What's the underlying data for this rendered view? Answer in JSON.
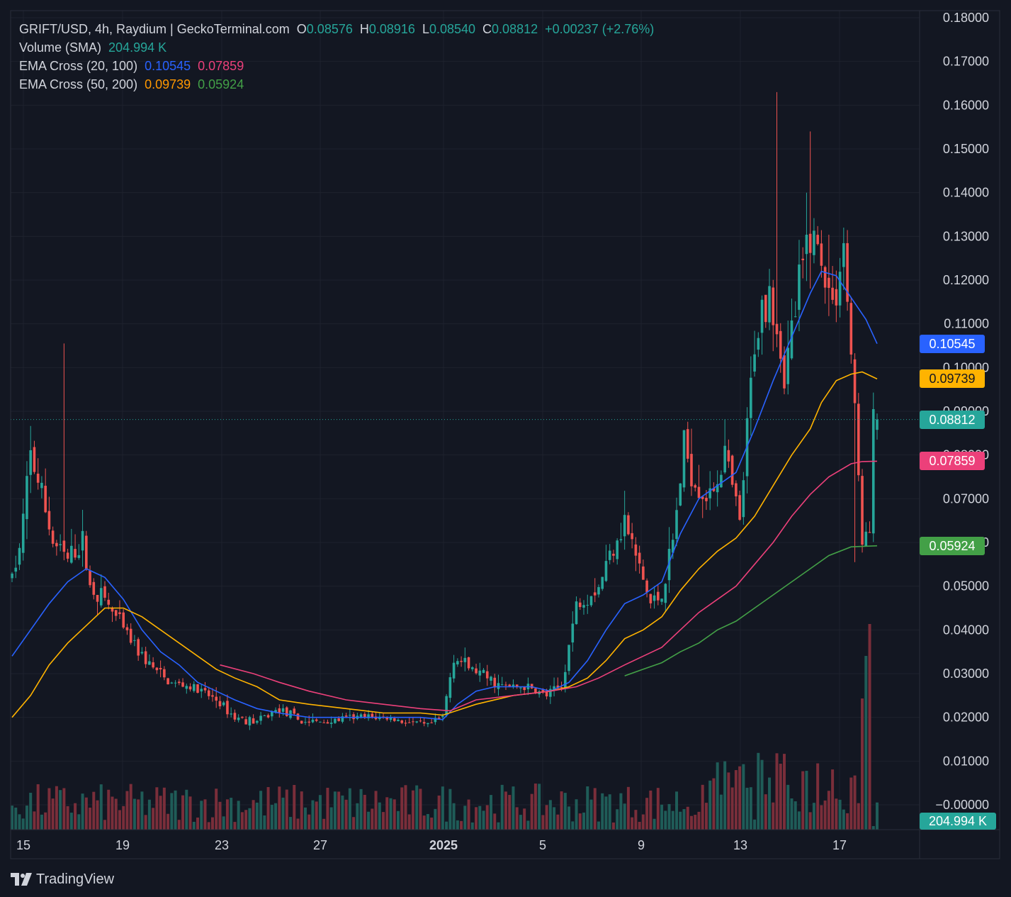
{
  "header": {
    "symbol_line": "GRIFT/USD, 4h, Raydium | GeckoTerminal.com",
    "ohlc": {
      "o_key": "O",
      "o": "0.08576",
      "h_key": "H",
      "h": "0.08916",
      "l_key": "L",
      "l": "0.08540",
      "c_key": "C",
      "c": "0.08812",
      "change": "+0.00237 (+2.76%)"
    },
    "volume_label": "Volume (SMA)",
    "volume_value": "204.994 K",
    "ema1_label": "EMA Cross (20, 100)",
    "ema1_fast": "0.10545",
    "ema1_slow": "0.07859",
    "ema2_label": "EMA Cross (50, 200)",
    "ema2_fast": "0.09739",
    "ema2_slow": "0.05924"
  },
  "badges": {
    "ema20": {
      "text": "0.10545",
      "value": 0.10545,
      "color": "#2962ff"
    },
    "ema50": {
      "text": "0.09739",
      "value": 0.09739,
      "color": "#ffb300"
    },
    "last": {
      "text": "0.08812",
      "value": 0.08812,
      "color": "#26a69a"
    },
    "ema100": {
      "text": "0.07859",
      "value": 0.07859,
      "color": "#ec407a"
    },
    "ema200": {
      "text": "0.05924",
      "value": 0.05924,
      "color": "#43a047"
    },
    "volume": {
      "text": "204.994 K",
      "color": "#26a69a"
    }
  },
  "brand": {
    "logo_text": "TradingView"
  },
  "colors": {
    "background": "#131722",
    "grid": "#1e222d",
    "up": "#26a69a",
    "down": "#ef5350",
    "volume_up": "#1f5c58",
    "volume_down": "#7a2e3a",
    "text": "#d1d4dc"
  },
  "chart_data": {
    "type": "candlestick",
    "symbol": "GRIFT/USD",
    "interval": "4h",
    "x_axis_ticks": [
      "15",
      "19",
      "23",
      "27",
      "2025",
      "5",
      "9",
      "13",
      "17"
    ],
    "y_axis_ticks": [
      "0.18000",
      "0.17000",
      "0.16000",
      "0.15000",
      "0.14000",
      "0.13000",
      "0.12000",
      "0.11000",
      "0.10000",
      "0.09000",
      "0.08000",
      "0.07000",
      "0.06000",
      "0.05000",
      "0.04000",
      "0.03000",
      "0.02000",
      "0.01000",
      "−0.00000"
    ],
    "ylim": [
      -0.0005,
      0.18
    ],
    "grid": true,
    "last_close": 0.08812,
    "close_path_points": [
      [
        0,
        0.052
      ],
      [
        2,
        0.058
      ],
      [
        5,
        0.08
      ],
      [
        8,
        0.071
      ],
      [
        11,
        0.06
      ],
      [
        15,
        0.056
      ],
      [
        19,
        0.06
      ],
      [
        21,
        0.05
      ],
      [
        25,
        0.047
      ],
      [
        30,
        0.04
      ],
      [
        36,
        0.033
      ],
      [
        42,
        0.028
      ],
      [
        48,
        0.027
      ],
      [
        55,
        0.024
      ],
      [
        60,
        0.02
      ],
      [
        66,
        0.019
      ],
      [
        72,
        0.022
      ],
      [
        78,
        0.019
      ],
      [
        85,
        0.019
      ],
      [
        92,
        0.02
      ],
      [
        100,
        0.02
      ],
      [
        106,
        0.019
      ],
      [
        112,
        0.018
      ],
      [
        116,
        0.02
      ],
      [
        119,
        0.034
      ],
      [
        122,
        0.032
      ],
      [
        126,
        0.03
      ],
      [
        132,
        0.027
      ],
      [
        138,
        0.027
      ],
      [
        144,
        0.025
      ],
      [
        148,
        0.027
      ],
      [
        152,
        0.046
      ],
      [
        158,
        0.05
      ],
      [
        162,
        0.06
      ],
      [
        165,
        0.065
      ],
      [
        169,
        0.054
      ],
      [
        172,
        0.046
      ],
      [
        175,
        0.048
      ],
      [
        178,
        0.06
      ],
      [
        181,
        0.082
      ],
      [
        184,
        0.074
      ],
      [
        188,
        0.07
      ],
      [
        192,
        0.08
      ],
      [
        196,
        0.064
      ],
      [
        200,
        0.106
      ],
      [
        204,
        0.12
      ],
      [
        208,
        0.098
      ],
      [
        212,
        0.118
      ],
      [
        215,
        0.132
      ],
      [
        218,
        0.125
      ],
      [
        221,
        0.114
      ],
      [
        224,
        0.128
      ],
      [
        226,
        0.103
      ],
      [
        229,
        0.061
      ],
      [
        231,
        0.062
      ],
      [
        232,
        0.0878
      ],
      [
        233,
        0.0881
      ]
    ],
    "ema_lines": [
      {
        "name": "EMA 20",
        "color": "#2962ff",
        "start": 0,
        "points": [
          [
            0,
            0.034
          ],
          [
            5,
            0.04
          ],
          [
            10,
            0.046
          ],
          [
            15,
            0.051
          ],
          [
            20,
            0.054
          ],
          [
            25,
            0.052
          ],
          [
            30,
            0.047
          ],
          [
            35,
            0.04
          ],
          [
            40,
            0.035
          ],
          [
            45,
            0.032
          ],
          [
            50,
            0.028
          ],
          [
            55,
            0.026
          ],
          [
            60,
            0.024
          ],
          [
            66,
            0.022
          ],
          [
            72,
            0.021
          ],
          [
            80,
            0.02
          ],
          [
            90,
            0.02
          ],
          [
            100,
            0.02
          ],
          [
            110,
            0.02
          ],
          [
            116,
            0.0195
          ],
          [
            120,
            0.023
          ],
          [
            125,
            0.026
          ],
          [
            130,
            0.027
          ],
          [
            135,
            0.027
          ],
          [
            140,
            0.027
          ],
          [
            145,
            0.026
          ],
          [
            150,
            0.028
          ],
          [
            155,
            0.033
          ],
          [
            160,
            0.04
          ],
          [
            165,
            0.046
          ],
          [
            170,
            0.048
          ],
          [
            175,
            0.051
          ],
          [
            180,
            0.062
          ],
          [
            185,
            0.07
          ],
          [
            190,
            0.073
          ],
          [
            195,
            0.076
          ],
          [
            200,
            0.086
          ],
          [
            205,
            0.097
          ],
          [
            210,
            0.107
          ],
          [
            215,
            0.117
          ],
          [
            218,
            0.122
          ],
          [
            222,
            0.121
          ],
          [
            226,
            0.116
          ],
          [
            230,
            0.111
          ],
          [
            233,
            0.10545
          ]
        ]
      },
      {
        "name": "EMA 50",
        "color": "#ffb300",
        "start": 0,
        "points": [
          [
            0,
            0.02
          ],
          [
            5,
            0.025
          ],
          [
            10,
            0.032
          ],
          [
            15,
            0.037
          ],
          [
            20,
            0.041
          ],
          [
            25,
            0.045
          ],
          [
            30,
            0.045
          ],
          [
            35,
            0.043
          ],
          [
            40,
            0.04
          ],
          [
            45,
            0.037
          ],
          [
            50,
            0.034
          ],
          [
            55,
            0.031
          ],
          [
            60,
            0.029
          ],
          [
            66,
            0.027
          ],
          [
            72,
            0.024
          ],
          [
            80,
            0.023
          ],
          [
            90,
            0.022
          ],
          [
            100,
            0.021
          ],
          [
            110,
            0.021
          ],
          [
            116,
            0.0205
          ],
          [
            125,
            0.023
          ],
          [
            135,
            0.025
          ],
          [
            145,
            0.026
          ],
          [
            150,
            0.027
          ],
          [
            155,
            0.029
          ],
          [
            160,
            0.033
          ],
          [
            165,
            0.038
          ],
          [
            170,
            0.04
          ],
          [
            175,
            0.043
          ],
          [
            180,
            0.049
          ],
          [
            185,
            0.054
          ],
          [
            190,
            0.058
          ],
          [
            195,
            0.061
          ],
          [
            200,
            0.066
          ],
          [
            205,
            0.073
          ],
          [
            210,
            0.08
          ],
          [
            215,
            0.086
          ],
          [
            218,
            0.092
          ],
          [
            222,
            0.097
          ],
          [
            226,
            0.0985
          ],
          [
            229,
            0.099
          ],
          [
            233,
            0.09739
          ]
        ]
      },
      {
        "name": "EMA 100",
        "color": "#ec407a",
        "start": 56,
        "points": [
          [
            56,
            0.032
          ],
          [
            65,
            0.03
          ],
          [
            72,
            0.028
          ],
          [
            80,
            0.026
          ],
          [
            90,
            0.024
          ],
          [
            100,
            0.023
          ],
          [
            110,
            0.022
          ],
          [
            118,
            0.0215
          ],
          [
            125,
            0.024
          ],
          [
            135,
            0.025
          ],
          [
            145,
            0.026
          ],
          [
            152,
            0.027
          ],
          [
            158,
            0.029
          ],
          [
            165,
            0.032
          ],
          [
            170,
            0.034
          ],
          [
            175,
            0.036
          ],
          [
            180,
            0.04
          ],
          [
            185,
            0.044
          ],
          [
            190,
            0.047
          ],
          [
            195,
            0.05
          ],
          [
            200,
            0.055
          ],
          [
            205,
            0.06
          ],
          [
            210,
            0.066
          ],
          [
            215,
            0.071
          ],
          [
            220,
            0.075
          ],
          [
            226,
            0.078
          ],
          [
            229,
            0.0785
          ],
          [
            233,
            0.07859
          ]
        ]
      },
      {
        "name": "EMA 200",
        "color": "#43a047",
        "start": 165,
        "points": [
          [
            165,
            0.0295
          ],
          [
            170,
            0.031
          ],
          [
            175,
            0.0325
          ],
          [
            180,
            0.035
          ],
          [
            185,
            0.037
          ],
          [
            190,
            0.04
          ],
          [
            195,
            0.042
          ],
          [
            200,
            0.045
          ],
          [
            205,
            0.048
          ],
          [
            210,
            0.051
          ],
          [
            215,
            0.054
          ],
          [
            220,
            0.057
          ],
          [
            226,
            0.059
          ],
          [
            233,
            0.05924
          ]
        ]
      }
    ]
  }
}
